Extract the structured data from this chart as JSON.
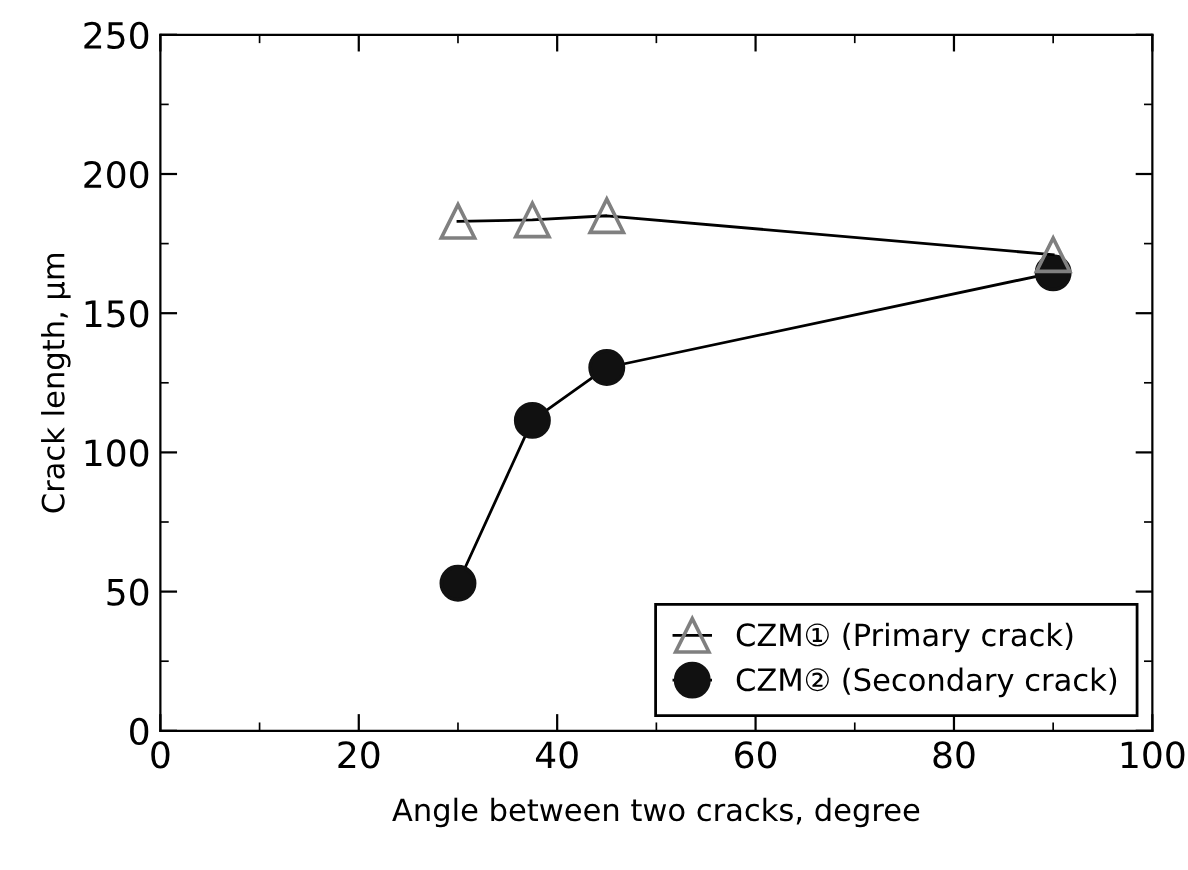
{
  "chart_data": {
    "type": "line",
    "xlabel": "Angle between two cracks, degree",
    "ylabel": "Crack length, μm",
    "xlim": [
      0,
      100
    ],
    "xticks": [
      0,
      20,
      40,
      60,
      80,
      100
    ],
    "ylim": [
      0,
      250
    ],
    "yticks": [
      0,
      50,
      100,
      150,
      200,
      250
    ],
    "grid": false,
    "legend": "bottom right",
    "series": [
      {
        "name": "CZM① (Primary crack)",
        "color": "#808080",
        "marker": "triangle",
        "x": [
          30,
          37.5,
          45,
          90
        ],
        "values": [
          183,
          183.5,
          185,
          171
        ]
      },
      {
        "name": "CZM② (Secondary crack)",
        "color": "#111111",
        "marker": "circle",
        "x": [
          30,
          37.5,
          45,
          90
        ],
        "values": [
          53,
          111.5,
          130.5,
          164.5
        ]
      }
    ]
  }
}
